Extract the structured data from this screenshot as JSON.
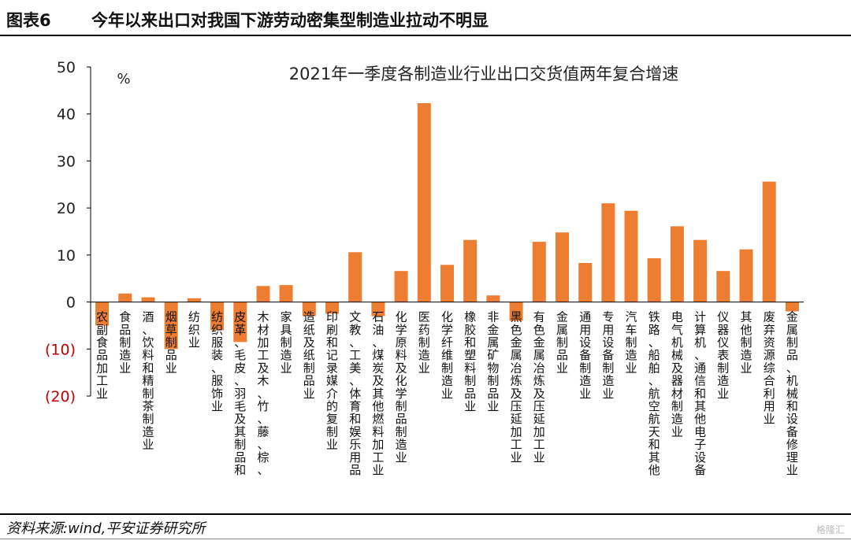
{
  "header": {
    "figure_number": "图表6",
    "title": "今年以来出口对我国下游劳动密集型制造业拉动不明显"
  },
  "footer": {
    "source": "资料来源:wind,平安证券研究所",
    "watermark": "格隆汇"
  },
  "colors": {
    "bar": "#ED7D31",
    "negative_tick": "#C00000",
    "axis": "#000000"
  },
  "chart_data": {
    "type": "bar",
    "title": "2021年一季度各制造业行业出口交货值两年复合增速",
    "ylabel": "%",
    "ylim": [
      -20,
      50
    ],
    "yticks": [
      50,
      40,
      30,
      20,
      10,
      0,
      -10,
      -20
    ],
    "ytick_labels": [
      "50",
      "40",
      "30",
      "20",
      "10",
      "0",
      "(10)",
      "(20)"
    ],
    "grid": false,
    "categories": [
      "农副食品加工业",
      "食品制造业",
      "酒、饮料和精制茶制造业",
      "烟草制品业",
      "纺织业",
      "纺织服装、服饰业",
      "皮革、毛皮、羽毛及其制品和",
      "木材加工及木、竹、藤、棕、",
      "家具制造业",
      "造纸及纸制品业",
      "印刷和记录媒介的复制业",
      "文教、工美、体育和娱乐用品",
      "石油、煤炭及其他燃料加工业",
      "化学原料及化学制品制造业",
      "医药制造业",
      "化学纤维制造业",
      "橡胶和塑料制品业",
      "非金属矿物制品业",
      "黑色金属冶炼及压延加工业",
      "有色金属冶炼及压延加工业",
      "金属制品业",
      "通用设备制造业",
      "专用设备制造业",
      "汽车制造业",
      "铁路、船舶、航空航天和其他",
      "电气机械及器材制造业",
      "计算机、通信和其他电子设备",
      "仪器仪表制造业",
      "其他制造业",
      "废弃资源综合利用业",
      "金属制品、机械和设备修理业"
    ],
    "values": [
      -5.0,
      1.8,
      1.0,
      -10.0,
      0.8,
      -6.0,
      -8.5,
      3.4,
      3.6,
      -3.0,
      -2.5,
      10.6,
      -3.0,
      6.6,
      42.3,
      7.9,
      13.2,
      1.4,
      -4.0,
      12.8,
      14.8,
      8.3,
      21.0,
      19.4,
      9.3,
      16.1,
      13.2,
      6.6,
      11.2,
      25.6,
      -2.0
    ]
  }
}
